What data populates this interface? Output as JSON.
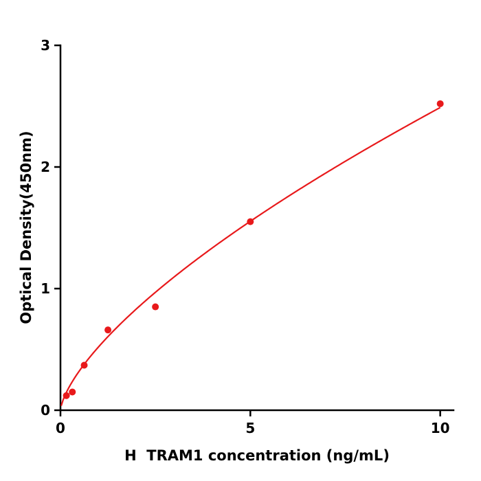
{
  "chart_data": {
    "type": "scatter",
    "title": "",
    "xlabel": "H  TRAM1 concentration (ng/mL)",
    "ylabel": "Optical Density(450nm)",
    "x": [
      0.156,
      0.3125,
      0.625,
      1.25,
      2.5,
      5,
      10
    ],
    "y": [
      0.12,
      0.15,
      0.37,
      0.66,
      0.85,
      1.55,
      2.52
    ],
    "xlim": [
      0,
      10.35
    ],
    "ylim": [
      0,
      3
    ],
    "xticks": [
      0,
      5,
      10
    ],
    "yticks": [
      0,
      1,
      2,
      3
    ],
    "grid": false,
    "legend": false,
    "point_color": "#e8191b",
    "curve_color": "#e8191b",
    "axis_color": "#000000",
    "curve": {
      "type": "power",
      "a": 0.52,
      "b": 0.68
    }
  }
}
